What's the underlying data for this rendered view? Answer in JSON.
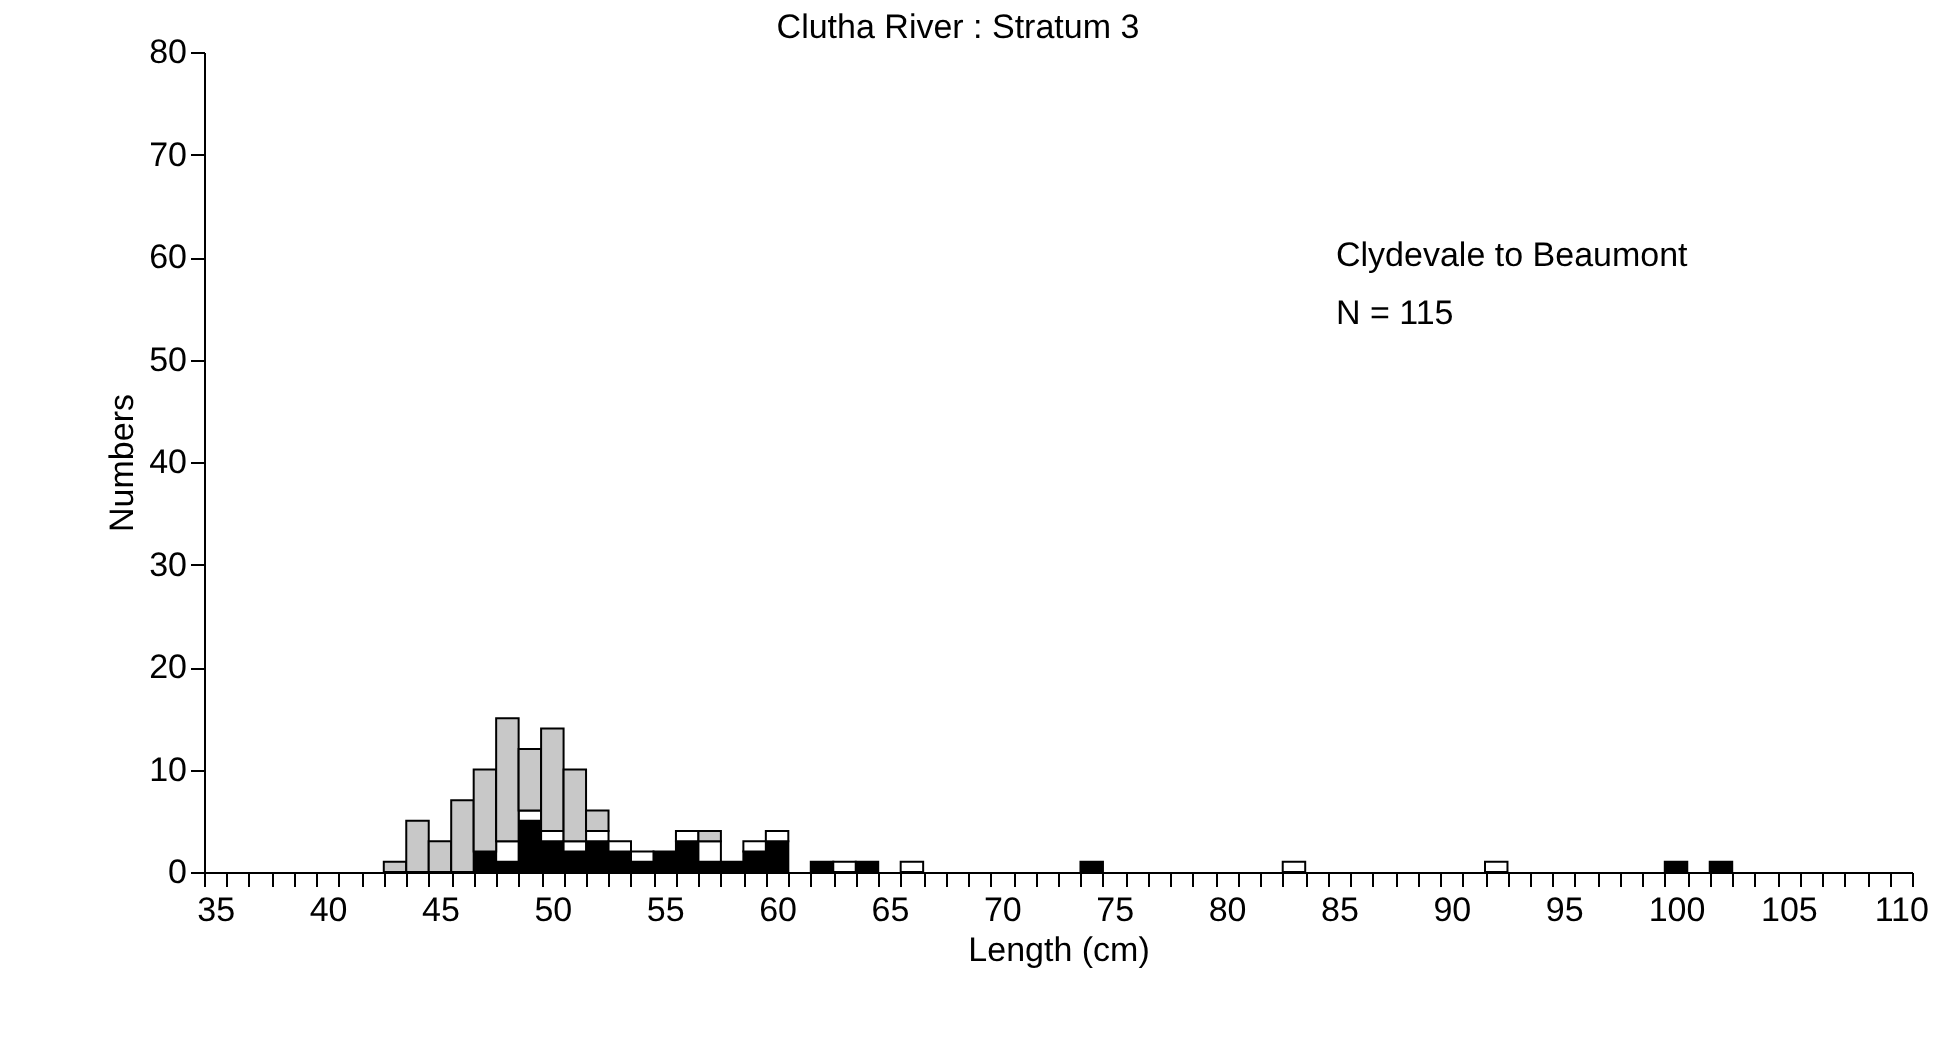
{
  "chart_data": {
    "type": "bar",
    "title": "Clutha River : Stratum 3",
    "xlabel": "Length (cm)",
    "ylabel": "Numbers",
    "annotations": [
      "Clydevale to Beaumont",
      "N = 115"
    ],
    "stacked": true,
    "categories": [
      "35",
      null,
      null,
      null,
      null,
      "40",
      null,
      null,
      null,
      null,
      "45",
      null,
      null,
      null,
      null,
      "50",
      null,
      null,
      null,
      null,
      "55",
      null,
      null,
      null,
      null,
      "60",
      null,
      null,
      null,
      null,
      "65",
      null,
      null,
      null,
      null,
      "70",
      null,
      null,
      null,
      null,
      "75",
      null,
      null,
      null,
      null,
      "80",
      null,
      null,
      null,
      null,
      "85",
      null,
      null,
      null,
      null,
      "90",
      null,
      null,
      null,
      null,
      "95",
      null,
      null,
      null,
      null,
      "100",
      null,
      null,
      null,
      null,
      "105",
      null,
      null,
      null,
      null,
      "110"
    ],
    "series": [
      {
        "color": "#000000",
        "values": [
          0,
          0,
          0,
          0,
          0,
          0,
          0,
          0,
          0,
          0,
          0,
          0,
          2,
          1,
          5,
          3,
          2,
          3,
          2,
          1,
          2,
          3,
          1,
          1,
          2,
          3,
          0,
          1,
          0,
          1,
          0,
          0,
          0,
          0,
          0,
          0,
          0,
          0,
          0,
          1,
          0,
          0,
          0,
          0,
          0,
          0,
          0,
          0,
          0,
          0,
          0,
          0,
          0,
          0,
          0,
          0,
          0,
          0,
          0,
          0,
          0,
          0,
          0,
          0,
          0,
          1,
          0,
          1,
          0,
          0,
          0,
          0,
          0,
          0,
          0,
          0
        ]
      },
      {
        "color": "#ffffff",
        "values": [
          0,
          0,
          0,
          0,
          0,
          0,
          0,
          0,
          0,
          0,
          0,
          0,
          0,
          2,
          1,
          1,
          1,
          1,
          1,
          1,
          0,
          1,
          2,
          0,
          1,
          1,
          0,
          0,
          1,
          0,
          0,
          1,
          0,
          0,
          0,
          0,
          0,
          0,
          0,
          0,
          0,
          0,
          0,
          0,
          0,
          0,
          0,
          0,
          1,
          0,
          0,
          0,
          0,
          0,
          0,
          0,
          0,
          1,
          0,
          0,
          0,
          0,
          0,
          0,
          0,
          0,
          0,
          0,
          0,
          0,
          0,
          0,
          0,
          0,
          0,
          0
        ]
      },
      {
        "color": "#c8c8c8",
        "values": [
          0,
          0,
          0,
          0,
          0,
          0,
          0,
          0,
          1,
          5,
          3,
          7,
          8,
          12,
          6,
          10,
          7,
          2,
          0,
          0,
          0,
          0,
          1,
          0,
          0,
          0,
          0,
          0,
          0,
          0,
          0,
          0,
          0,
          0,
          0,
          0,
          0,
          0,
          0,
          0,
          0,
          0,
          0,
          0,
          0,
          0,
          0,
          0,
          0,
          0,
          0,
          0,
          0,
          0,
          0,
          0,
          0,
          0,
          0,
          0,
          0,
          0,
          0,
          0,
          0,
          0,
          0,
          0,
          0,
          0,
          0,
          0,
          0,
          0,
          0,
          0
        ]
      }
    ],
    "ylim": [
      0,
      80
    ],
    "yticks": [
      0,
      10,
      20,
      30,
      40,
      50,
      60,
      70,
      80
    ],
    "grid": false,
    "legend": false
  }
}
